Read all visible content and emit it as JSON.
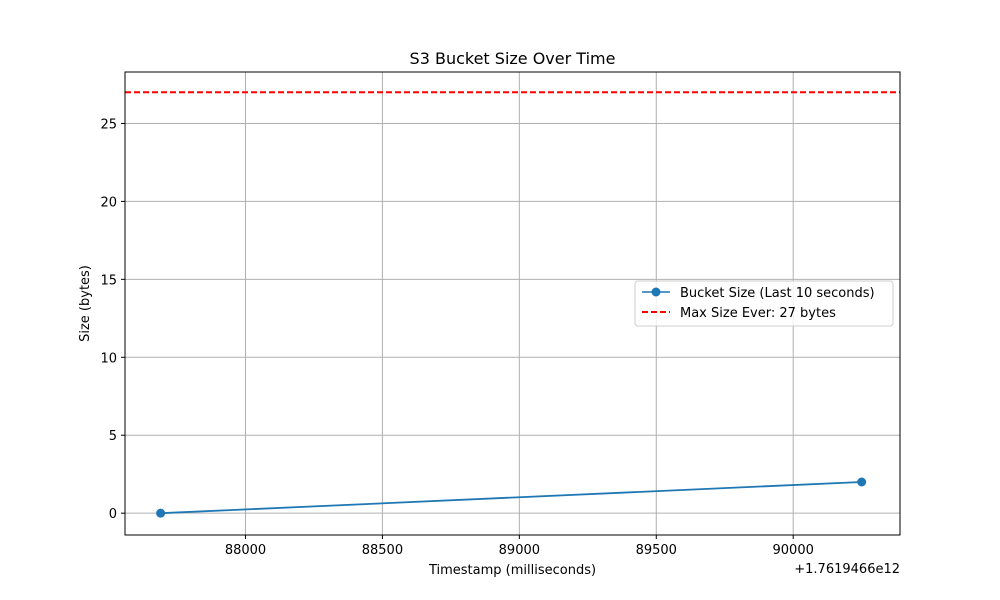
{
  "chart_data": {
    "type": "line",
    "title": "S3 Bucket Size Over Time",
    "xlabel": "Timestamp (milliseconds)",
    "ylabel": "Size (bytes)",
    "x_offset_label": "+1.7619466e12",
    "xlim": [
      87560,
      90390
    ],
    "ylim": [
      -1.4,
      28.3
    ],
    "x_ticks": [
      {
        "value": 88000,
        "label": "88000"
      },
      {
        "value": 88500,
        "label": "88500"
      },
      {
        "value": 89000,
        "label": "89000"
      },
      {
        "value": 89500,
        "label": "89500"
      },
      {
        "value": 90000,
        "label": "90000"
      }
    ],
    "y_ticks": [
      {
        "value": 0,
        "label": "0"
      },
      {
        "value": 5,
        "label": "5"
      },
      {
        "value": 10,
        "label": "10"
      },
      {
        "value": 15,
        "label": "15"
      },
      {
        "value": 20,
        "label": "20"
      },
      {
        "value": 25,
        "label": "25"
      }
    ],
    "grid": true,
    "legend_position": "center-right",
    "series": [
      {
        "name": "Bucket Size (Last 10 seconds)",
        "color": "#1f77b4",
        "style": "solid-with-markers",
        "x": [
          87690,
          90250
        ],
        "y": [
          0,
          2
        ]
      }
    ],
    "reference_lines": [
      {
        "name": "Max Size Ever: 27 bytes",
        "color": "#ff0000",
        "style": "dashed",
        "y": 27
      }
    ]
  }
}
